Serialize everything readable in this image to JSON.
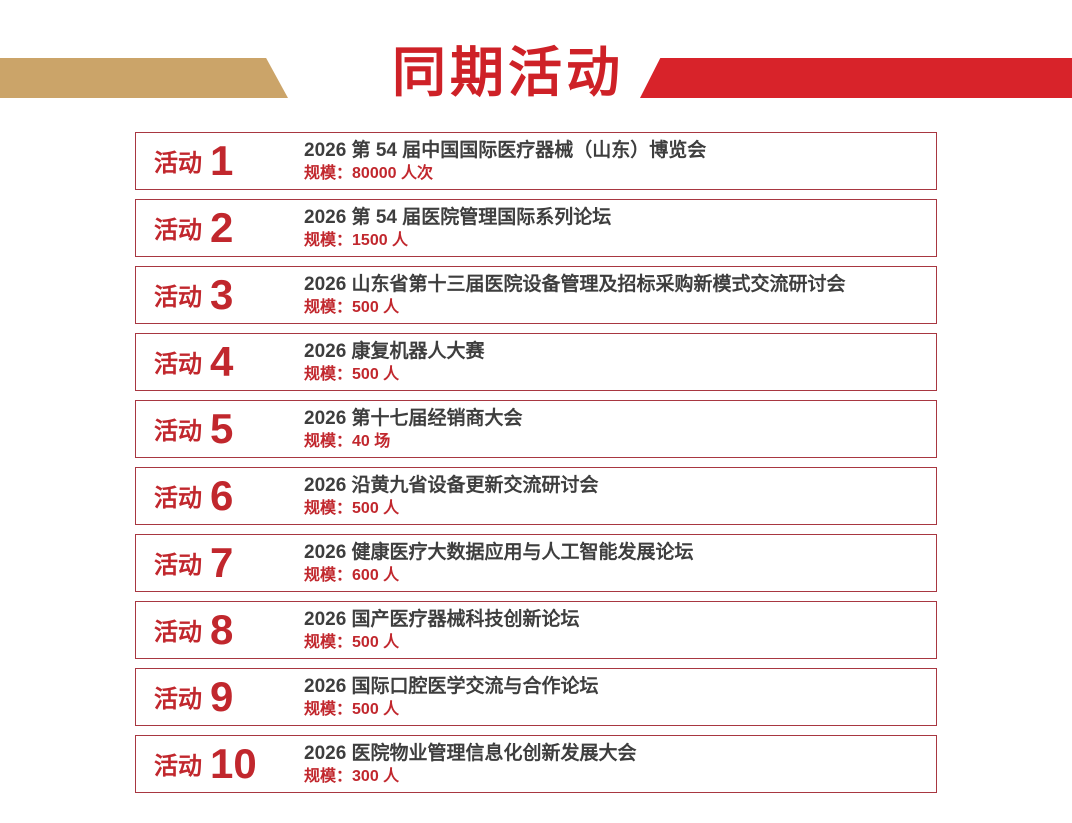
{
  "header": {
    "title": "同期活动",
    "accent_left_color": "#CBA469",
    "accent_right_color": "#D8232A",
    "title_color": "#CE2127"
  },
  "labels": {
    "activity_prefix": "活动",
    "scale_prefix": "规模："
  },
  "colors": {
    "box_border": "#A83741",
    "activity_label_red": "#C1272D",
    "title_text_gray": "#3E3E3E"
  },
  "activities": [
    {
      "number": "1",
      "title": "2026 第 54 届中国国际医疗器械（山东）博览会",
      "scale": "80000 人次"
    },
    {
      "number": "2",
      "title": "2026 第 54 届医院管理国际系列论坛",
      "scale": "1500 人"
    },
    {
      "number": "3",
      "title": "2026 山东省第十三届医院设备管理及招标采购新模式交流研讨会",
      "scale": "500 人"
    },
    {
      "number": "4",
      "title": "2026 康复机器人大赛",
      "scale": "500 人"
    },
    {
      "number": "5",
      "title": "2026 第十七届经销商大会",
      "scale": "40 场"
    },
    {
      "number": "6",
      "title": "2026 沿黄九省设备更新交流研讨会",
      "scale": "500 人"
    },
    {
      "number": "7",
      "title": "2026 健康医疗大数据应用与人工智能发展论坛",
      "scale": "600 人"
    },
    {
      "number": "8",
      "title": "2026 国产医疗器械科技创新论坛",
      "scale": "500 人"
    },
    {
      "number": "9",
      "title": "2026 国际口腔医学交流与合作论坛",
      "scale": "500 人"
    },
    {
      "number": "10",
      "title": "2026 医院物业管理信息化创新发展大会",
      "scale": "300 人"
    }
  ]
}
